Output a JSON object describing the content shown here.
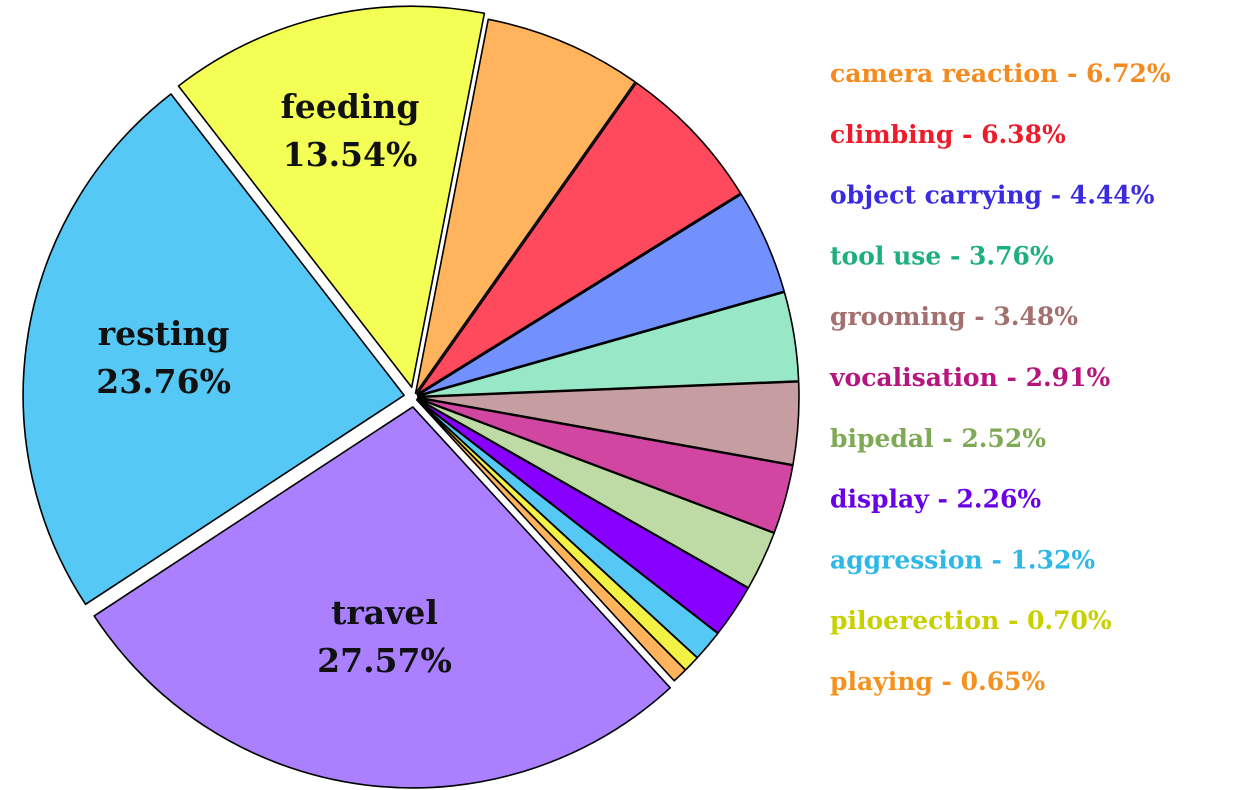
{
  "chart_data": {
    "type": "pie",
    "title": "",
    "slices": [
      {
        "name": "camera reaction",
        "value": 6.72,
        "label": "camera reaction - 6.72%",
        "color": "#FFB35C",
        "text_color": "#F58A1F"
      },
      {
        "name": "climbing",
        "value": 6.38,
        "label": "climbing - 6.38%",
        "color": "#FF4A5E",
        "text_color": "#EE1B2A"
      },
      {
        "name": "object carrying",
        "value": 4.44,
        "label": "object carrying - 4.44%",
        "color": "#7390FF",
        "text_color": "#3B2BE0"
      },
      {
        "name": "tool use",
        "value": 3.76,
        "label": "tool use - 3.76%",
        "color": "#98E8C8",
        "text_color": "#1DB07E"
      },
      {
        "name": "grooming",
        "value": 3.48,
        "label": "grooming - 3.48%",
        "color": "#C69EA2",
        "text_color": "#A3706F"
      },
      {
        "name": "vocalisation",
        "value": 2.91,
        "label": "vocalisation - 2.91%",
        "color": "#D046A0",
        "text_color": "#B6157E"
      },
      {
        "name": "bipedal",
        "value": 2.52,
        "label": "bipedal - 2.52%",
        "color": "#BEDBA6",
        "text_color": "#7FAA55"
      },
      {
        "name": "display",
        "value": 2.26,
        "label": "display - 2.26%",
        "color": "#8800FF",
        "text_color": "#6A00E6"
      },
      {
        "name": "aggression",
        "value": 1.32,
        "label": "aggression - 1.32%",
        "color": "#55C8F5",
        "text_color": "#2EB8E8"
      },
      {
        "name": "piloerection",
        "value": 0.7,
        "label": "piloerection - 0.70%",
        "color": "#F2F245",
        "text_color": "#C8D000"
      },
      {
        "name": "playing",
        "value": 0.65,
        "label": "playing - 0.65%",
        "color": "#FFB35C",
        "text_color": "#F5921F"
      },
      {
        "name": "travel",
        "value": 27.57,
        "inside_name": "travel",
        "inside_pct": "27.57%",
        "color": "#AA80FF"
      },
      {
        "name": "resting",
        "value": 23.76,
        "inside_name": "resting",
        "inside_pct": "23.76%",
        "color": "#55C8F5"
      },
      {
        "name": "feeding",
        "value": 13.54,
        "inside_name": "feeding",
        "inside_pct": "13.54%",
        "color": "#F4FF55"
      }
    ],
    "start_angle_deg": 79,
    "direction": "clockwise",
    "legend": "right"
  }
}
